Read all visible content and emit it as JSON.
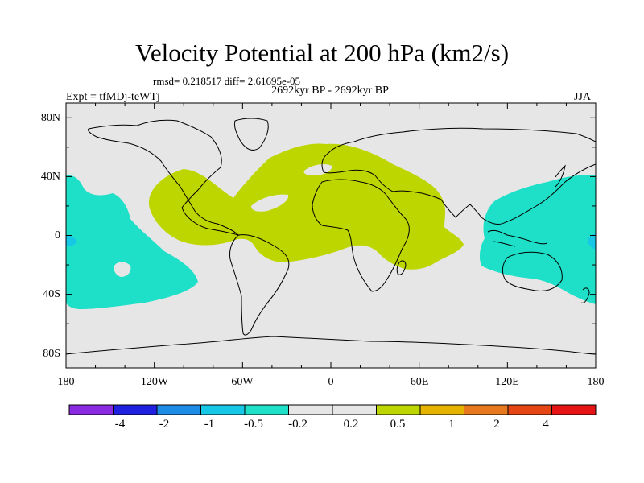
{
  "title": "Velocity Potential at 200 hPa (km2/s)",
  "stats": "rmsd= 0.218517 diff= 2.61695e-05",
  "period": "2692kyr BP - 2692kyr BP",
  "experiment": "Expt = tfMDj-teWTj",
  "season": "JJA",
  "lat_labels": [
    "80N",
    "40N",
    "0",
    "40S",
    "80S"
  ],
  "lon_labels": [
    "180",
    "120W",
    "60W",
    "0",
    "60E",
    "120E",
    "180"
  ],
  "colorbar": {
    "colors": [
      "#8a2be2",
      "#2020e0",
      "#1e8ce6",
      "#16c8e6",
      "#1ee0c8",
      "#e6e6e6",
      "#e6e6e6",
      "#bed600",
      "#e6b400",
      "#e6781e",
      "#e64614",
      "#e61414"
    ],
    "labels": [
      "-4",
      "-2",
      "-1",
      "-0.5",
      "-0.2",
      "0.2",
      "0.5",
      "1",
      "2",
      "4"
    ]
  },
  "colors": {
    "background_field": "#e6e6e6",
    "positive_fill": "#bed600",
    "negative_fill": "#1ee0c8",
    "coast": "#000000"
  }
}
